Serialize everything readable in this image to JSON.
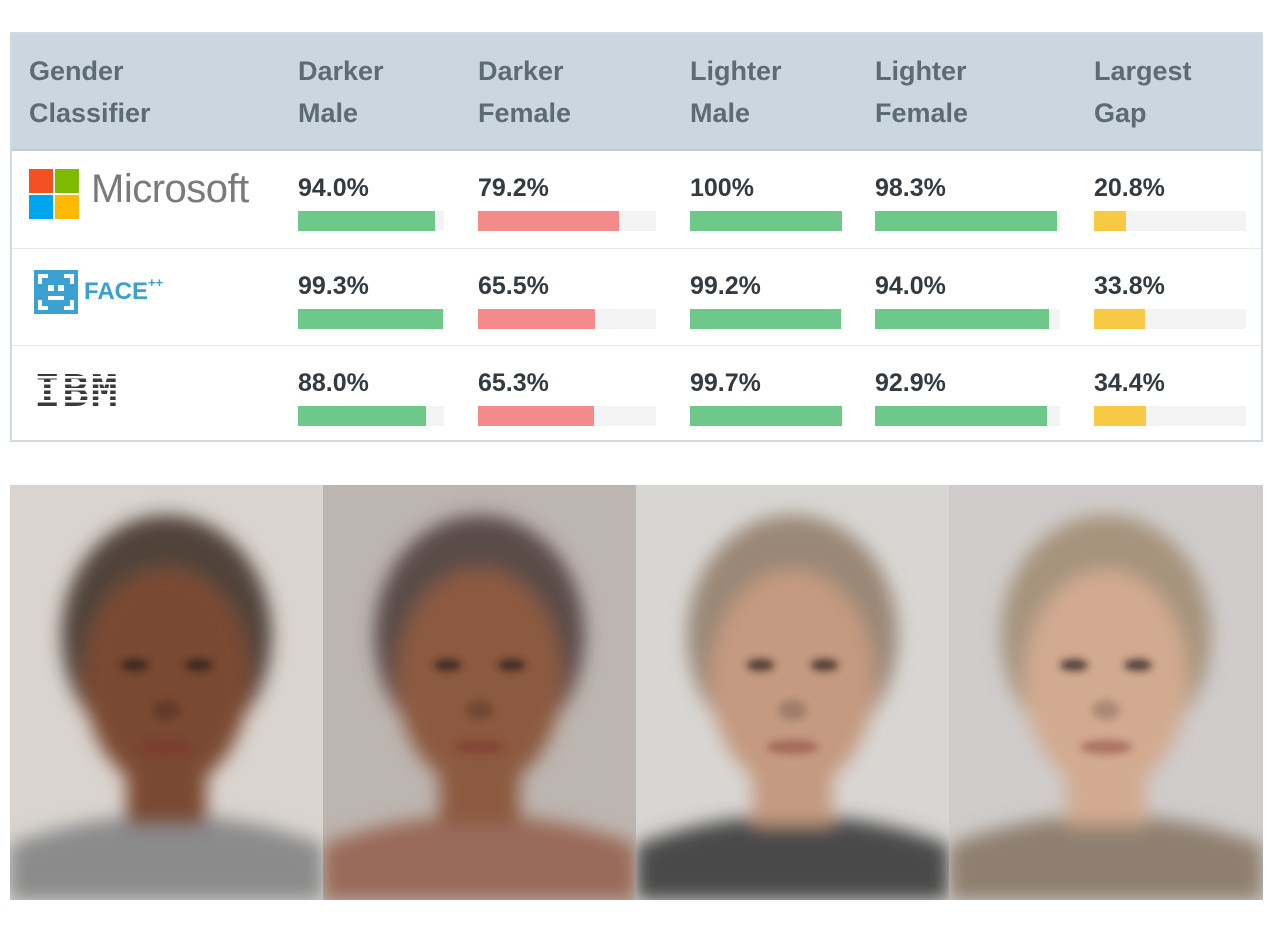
{
  "chart_data": {
    "type": "table",
    "columns": [
      "Gender Classifier",
      "Darker Male",
      "Darker Female",
      "Lighter Male",
      "Lighter Female",
      "Largest Gap"
    ],
    "header_lines": [
      [
        "Gender",
        "Classifier"
      ],
      [
        "Darker",
        "Male"
      ],
      [
        "Darker",
        "Female"
      ],
      [
        "Lighter",
        "Male"
      ],
      [
        "Lighter",
        "Female"
      ],
      [
        "Largest",
        "Gap"
      ]
    ],
    "rows": [
      {
        "classifier": "Microsoft",
        "logo": "microsoft-logo",
        "values": [
          94.0,
          79.2,
          100,
          98.3,
          20.8
        ],
        "labels": [
          "94.0%",
          "79.2%",
          "100%",
          "98.3%",
          "20.8%"
        ]
      },
      {
        "classifier": "FACE++",
        "logo": "faceplusplus-logo",
        "values": [
          99.3,
          65.5,
          99.2,
          94.0,
          33.8
        ],
        "labels": [
          "99.3%",
          "65.5%",
          "99.2%",
          "94.0%",
          "33.8%"
        ]
      },
      {
        "classifier": "IBM",
        "logo": "ibm-logo",
        "values": [
          88.0,
          65.3,
          99.7,
          92.9,
          34.4
        ],
        "labels": [
          "88.0%",
          "65.3%",
          "99.7%",
          "92.9%",
          "34.4%"
        ]
      }
    ],
    "bar_colors": {
      "good": "#6dc88a",
      "darker_female": "#f38b8b",
      "gap": "#f8c945",
      "track": "#f1f3f4"
    },
    "gap_scale_max": 100
  },
  "logos": {
    "microsoft_text": "Microsoft",
    "facepp_text": "FACE",
    "facepp_sup": "++",
    "ibm_text": "IBM",
    "microsoft_colors": [
      "#f25022",
      "#7fba00",
      "#00a4ef",
      "#ffb900"
    ],
    "facepp_color": "#3aa1d1"
  },
  "faces": [
    {
      "name": "darker-male-average-face",
      "bg": "#d9d4cf",
      "skin": "#7a4a33",
      "hair": "#3b2a22",
      "clothes": "#8b8b8b"
    },
    {
      "name": "darker-female-average-face",
      "bg": "#bdb5b0",
      "skin": "#8c5a40",
      "hair": "#4a3a36",
      "clothes": "#9a6a5a"
    },
    {
      "name": "lighter-male-average-face",
      "bg": "#d8d6d3",
      "skin": "#c49a80",
      "hair": "#8f7a66",
      "clothes": "#4a4a4a"
    },
    {
      "name": "lighter-female-average-face",
      "bg": "#cfcccb",
      "skin": "#d2aa90",
      "hair": "#a08a70",
      "clothes": "#8f7f70"
    }
  ]
}
